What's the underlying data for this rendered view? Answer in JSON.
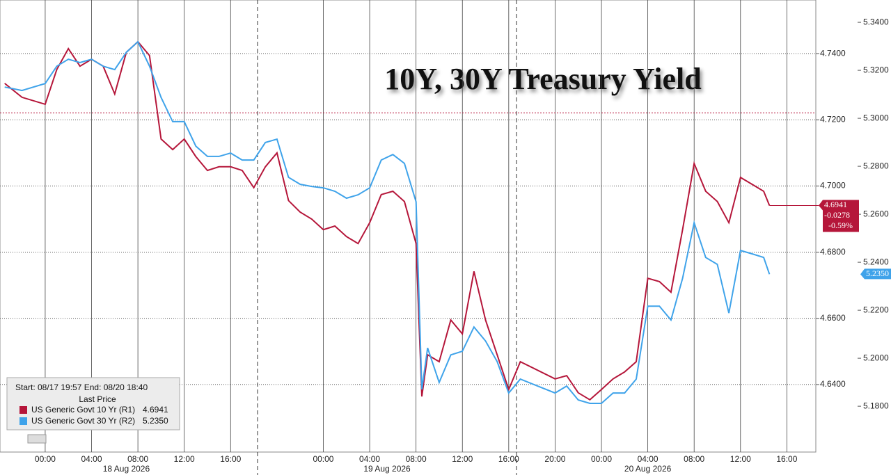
{
  "chart_data": {
    "type": "line",
    "title": "10Y, 30Y Treasury Yield",
    "legend_header": "Start: 08/17 19:57 End: 08/20 18:40",
    "legend_subheader": "Last Price",
    "x": [
      -3.5,
      -2,
      0,
      1,
      2,
      3,
      4,
      5,
      6,
      7,
      8,
      9,
      10,
      11,
      12,
      13,
      14,
      15,
      16,
      17,
      18,
      19,
      20,
      21,
      22,
      23,
      24,
      25,
      26,
      27,
      28,
      29,
      30,
      31,
      32,
      32.5,
      33,
      34,
      35,
      36,
      37,
      38,
      39,
      40,
      41,
      44,
      45,
      46,
      47,
      48,
      49,
      50,
      51,
      52,
      53,
      54,
      55,
      56,
      57,
      58,
      59,
      60,
      61,
      62,
      62.5
    ],
    "xlim": [
      -3.9,
      66.5
    ],
    "xticks": [
      {
        "value": 0,
        "label": "00:00"
      },
      {
        "value": 4,
        "label": "04:00"
      },
      {
        "value": 8,
        "label": "08:00"
      },
      {
        "value": 12,
        "label": "12:00"
      },
      {
        "value": 16,
        "label": "16:00"
      },
      {
        "value": 24,
        "label": "00:00"
      },
      {
        "value": 28,
        "label": "04:00"
      },
      {
        "value": 32,
        "label": "08:00"
      },
      {
        "value": 36,
        "label": "12:00"
      },
      {
        "value": 40,
        "label": "16:00"
      },
      {
        "value": 44,
        "label": "20:00"
      },
      {
        "value": 48,
        "label": "00:00"
      },
      {
        "value": 52,
        "label": "04:00"
      },
      {
        "value": 56,
        "label": "08:00"
      },
      {
        "value": 60,
        "label": "12:00"
      },
      {
        "value": 64,
        "label": "16:00"
      }
    ],
    "date_labels": [
      {
        "value": 7,
        "label": "18 Aug 2026"
      },
      {
        "value": 29.5,
        "label": "19 Aug 2026"
      },
      {
        "value": 52,
        "label": "20 Aug 2026"
      }
    ],
    "ylim": [
      4.6196,
      4.7562
    ],
    "yticks": [
      {
        "value": 4.64,
        "label": "4.6400"
      },
      {
        "value": 4.66,
        "label": "4.6600"
      },
      {
        "value": 4.68,
        "label": "4.6800"
      },
      {
        "value": 4.7,
        "label": "4.7000"
      },
      {
        "value": 4.72,
        "label": "4.7200"
      },
      {
        "value": 4.74,
        "label": "4.7400"
      }
    ],
    "y2lim": [
      5.1609,
      5.3493
    ],
    "y2ticks": [
      {
        "value": 5.18,
        "label": "5.1800"
      },
      {
        "value": 5.2,
        "label": "5.2000"
      },
      {
        "value": 5.22,
        "label": "5.2200"
      },
      {
        "value": 5.24,
        "label": "5.2400"
      },
      {
        "value": 5.26,
        "label": "5.2600"
      },
      {
        "value": 5.28,
        "label": "5.2800"
      },
      {
        "value": 5.3,
        "label": "5.3000"
      },
      {
        "value": 5.32,
        "label": "5.3200"
      },
      {
        "value": 5.34,
        "label": "5.3400"
      }
    ],
    "grid": true,
    "reference_line": 4.7221,
    "series": [
      {
        "name": "US Generic Govt 10 Yr  (R1)",
        "color": "#b5163a",
        "axis": "y",
        "last_label": "4.6941",
        "change": "-0.0278",
        "change_pct": "-0.59%",
        "values": [
          4.731,
          4.7268,
          4.7247,
          4.7352,
          4.7415,
          4.7362,
          4.7383,
          4.7362,
          4.7278,
          4.7404,
          4.7436,
          4.7394,
          4.7142,
          4.711,
          4.7142,
          4.7089,
          4.7047,
          4.7058,
          4.7058,
          4.7047,
          4.6995,
          4.7058,
          4.71,
          4.6956,
          4.6921,
          4.69,
          4.6868,
          4.6879,
          4.6847,
          4.6826,
          4.6889,
          4.6974,
          4.6984,
          4.6953,
          4.6826,
          4.6364,
          4.649,
          4.6469,
          4.6595,
          4.6553,
          4.6742,
          4.6595,
          4.649,
          4.6385,
          4.6469,
          4.6417,
          4.6427,
          4.6375,
          4.6354,
          4.6385,
          4.6417,
          4.6438,
          4.6469,
          4.6721,
          4.6711,
          4.6679,
          4.6868,
          4.7068,
          4.6984,
          4.6953,
          4.6889,
          4.7026,
          4.7005,
          4.6984,
          4.6941
        ]
      },
      {
        "name": "US Generic Govt 30 Yr  (R2)",
        "color": "#3fa3ea",
        "axis": "y2",
        "last_label": "5.2350",
        "values": [
          5.313,
          5.3116,
          5.3145,
          5.3217,
          5.3246,
          5.3232,
          5.3246,
          5.3217,
          5.3203,
          5.3275,
          5.3319,
          5.3217,
          5.3087,
          5.2986,
          5.2986,
          5.2884,
          5.2841,
          5.2841,
          5.2855,
          5.2826,
          5.2826,
          5.2899,
          5.2913,
          5.2754,
          5.2725,
          5.2716,
          5.271,
          5.2696,
          5.2667,
          5.2681,
          5.271,
          5.2826,
          5.2849,
          5.2812,
          5.2652,
          5.187,
          5.2043,
          5.1899,
          5.2014,
          5.2029,
          5.213,
          5.2072,
          5.1986,
          5.1855,
          5.1913,
          5.1855,
          5.1884,
          5.1826,
          5.1812,
          5.1812,
          5.1855,
          5.1855,
          5.1913,
          5.2217,
          5.2217,
          5.2159,
          5.2333,
          5.2565,
          5.242,
          5.2391,
          5.2188,
          5.2449,
          5.2435,
          5.242,
          5.235
        ]
      }
    ]
  }
}
